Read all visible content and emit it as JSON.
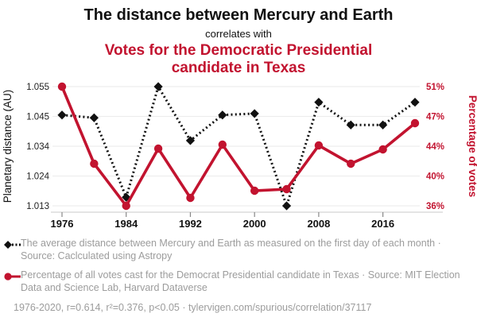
{
  "colors": {
    "accent": "#c2132f",
    "ink": "#111111",
    "muted": "#9c9c9c",
    "grid": "#ededed",
    "axis": "#c9c9c9",
    "tick_text": "#222222"
  },
  "header": {
    "title": "The distance between Mercury and Earth",
    "connector": "correlates with",
    "subtitle": "Votes for the Democratic Presidential candidate in Texas"
  },
  "chart_data": {
    "type": "line",
    "x": [
      1976,
      1980,
      1984,
      1988,
      1992,
      1996,
      2000,
      2004,
      2008,
      2012,
      2016,
      2020
    ],
    "x_ticks": [
      1976,
      1984,
      1992,
      2000,
      2008,
      2016
    ],
    "x_range": [
      1976,
      2020
    ],
    "grid": true,
    "series": [
      {
        "name": "Planetary distance (AU)",
        "axis": "left",
        "color": "#111111",
        "line": "dashed",
        "marker": "diamond",
        "values": [
          1.045,
          1.044,
          1.016,
          1.055,
          1.036,
          1.045,
          1.0455,
          1.013,
          1.0495,
          1.0415,
          1.0415,
          1.0495
        ]
      },
      {
        "name": "Percentage of votes",
        "axis": "right",
        "color": "#c2132f",
        "line": "solid",
        "marker": "circle",
        "values": [
          51.1,
          41.4,
          36.1,
          43.3,
          37.1,
          43.8,
          38.0,
          38.2,
          43.7,
          41.4,
          43.2,
          46.5
        ]
      }
    ],
    "left_axis": {
      "label": "Planetary distance (AU)",
      "range": [
        1.013,
        1.055
      ],
      "tick_labels_top_to_bottom": [
        "1.055",
        "1.045",
        "1.034",
        "1.024",
        "1.013"
      ]
    },
    "right_axis": {
      "label": "Percentage of votes",
      "range": [
        36.1,
        51.1
      ],
      "tick_labels_top_to_bottom": [
        "51%",
        "47%",
        "44%",
        "40%",
        "36%"
      ]
    }
  },
  "legend": [
    {
      "marker": "diamond",
      "line": "dashed",
      "color": "#111111",
      "text": "The average distance between Mercury and Earth as measured on the first day of each month · Source: Caclculated using Astropy"
    },
    {
      "marker": "circle",
      "line": "solid",
      "color": "#c2132f",
      "text": "Percentage of all votes cast for the Democrat Presidential candidate in Texas · Source: MIT Election Data and Science Lab, Harvard Dataverse"
    }
  ],
  "footer": {
    "text": "1976-2020, r=0.614, r²=0.376, p<0.05 · tylervigen.com/spurious/correlation/37117"
  }
}
